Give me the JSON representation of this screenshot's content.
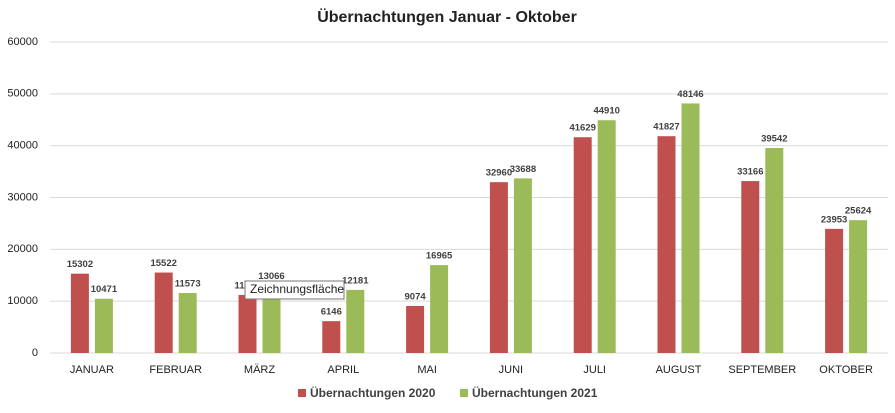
{
  "chart_data": {
    "type": "bar",
    "title": "Übernachtungen Januar - Oktober",
    "categories": [
      "JANUAR",
      "FEBRUAR",
      "MÄRZ",
      "APRIL",
      "MAI",
      "JUNI",
      "JULI",
      "AUGUST",
      "SEPTEMBER",
      "OKTOBER"
    ],
    "series": [
      {
        "name": "Übernachtungen 2020",
        "color": "#c0504d",
        "values": [
          15302,
          15522,
          11200,
          6146,
          9074,
          32960,
          41629,
          41827,
          33166,
          23953
        ]
      },
      {
        "name": "Übernachtungen 2021",
        "color": "#9bbb59",
        "values": [
          10471,
          11573,
          13066,
          12181,
          16965,
          33688,
          44910,
          48146,
          39542,
          25624
        ]
      }
    ],
    "ylim": [
      0,
      60000
    ],
    "yticks": [
      0,
      10000,
      20000,
      30000,
      40000,
      50000,
      60000
    ],
    "grid": true,
    "legend": "bottom",
    "tooltip": "Zeichnungsfläche"
  }
}
